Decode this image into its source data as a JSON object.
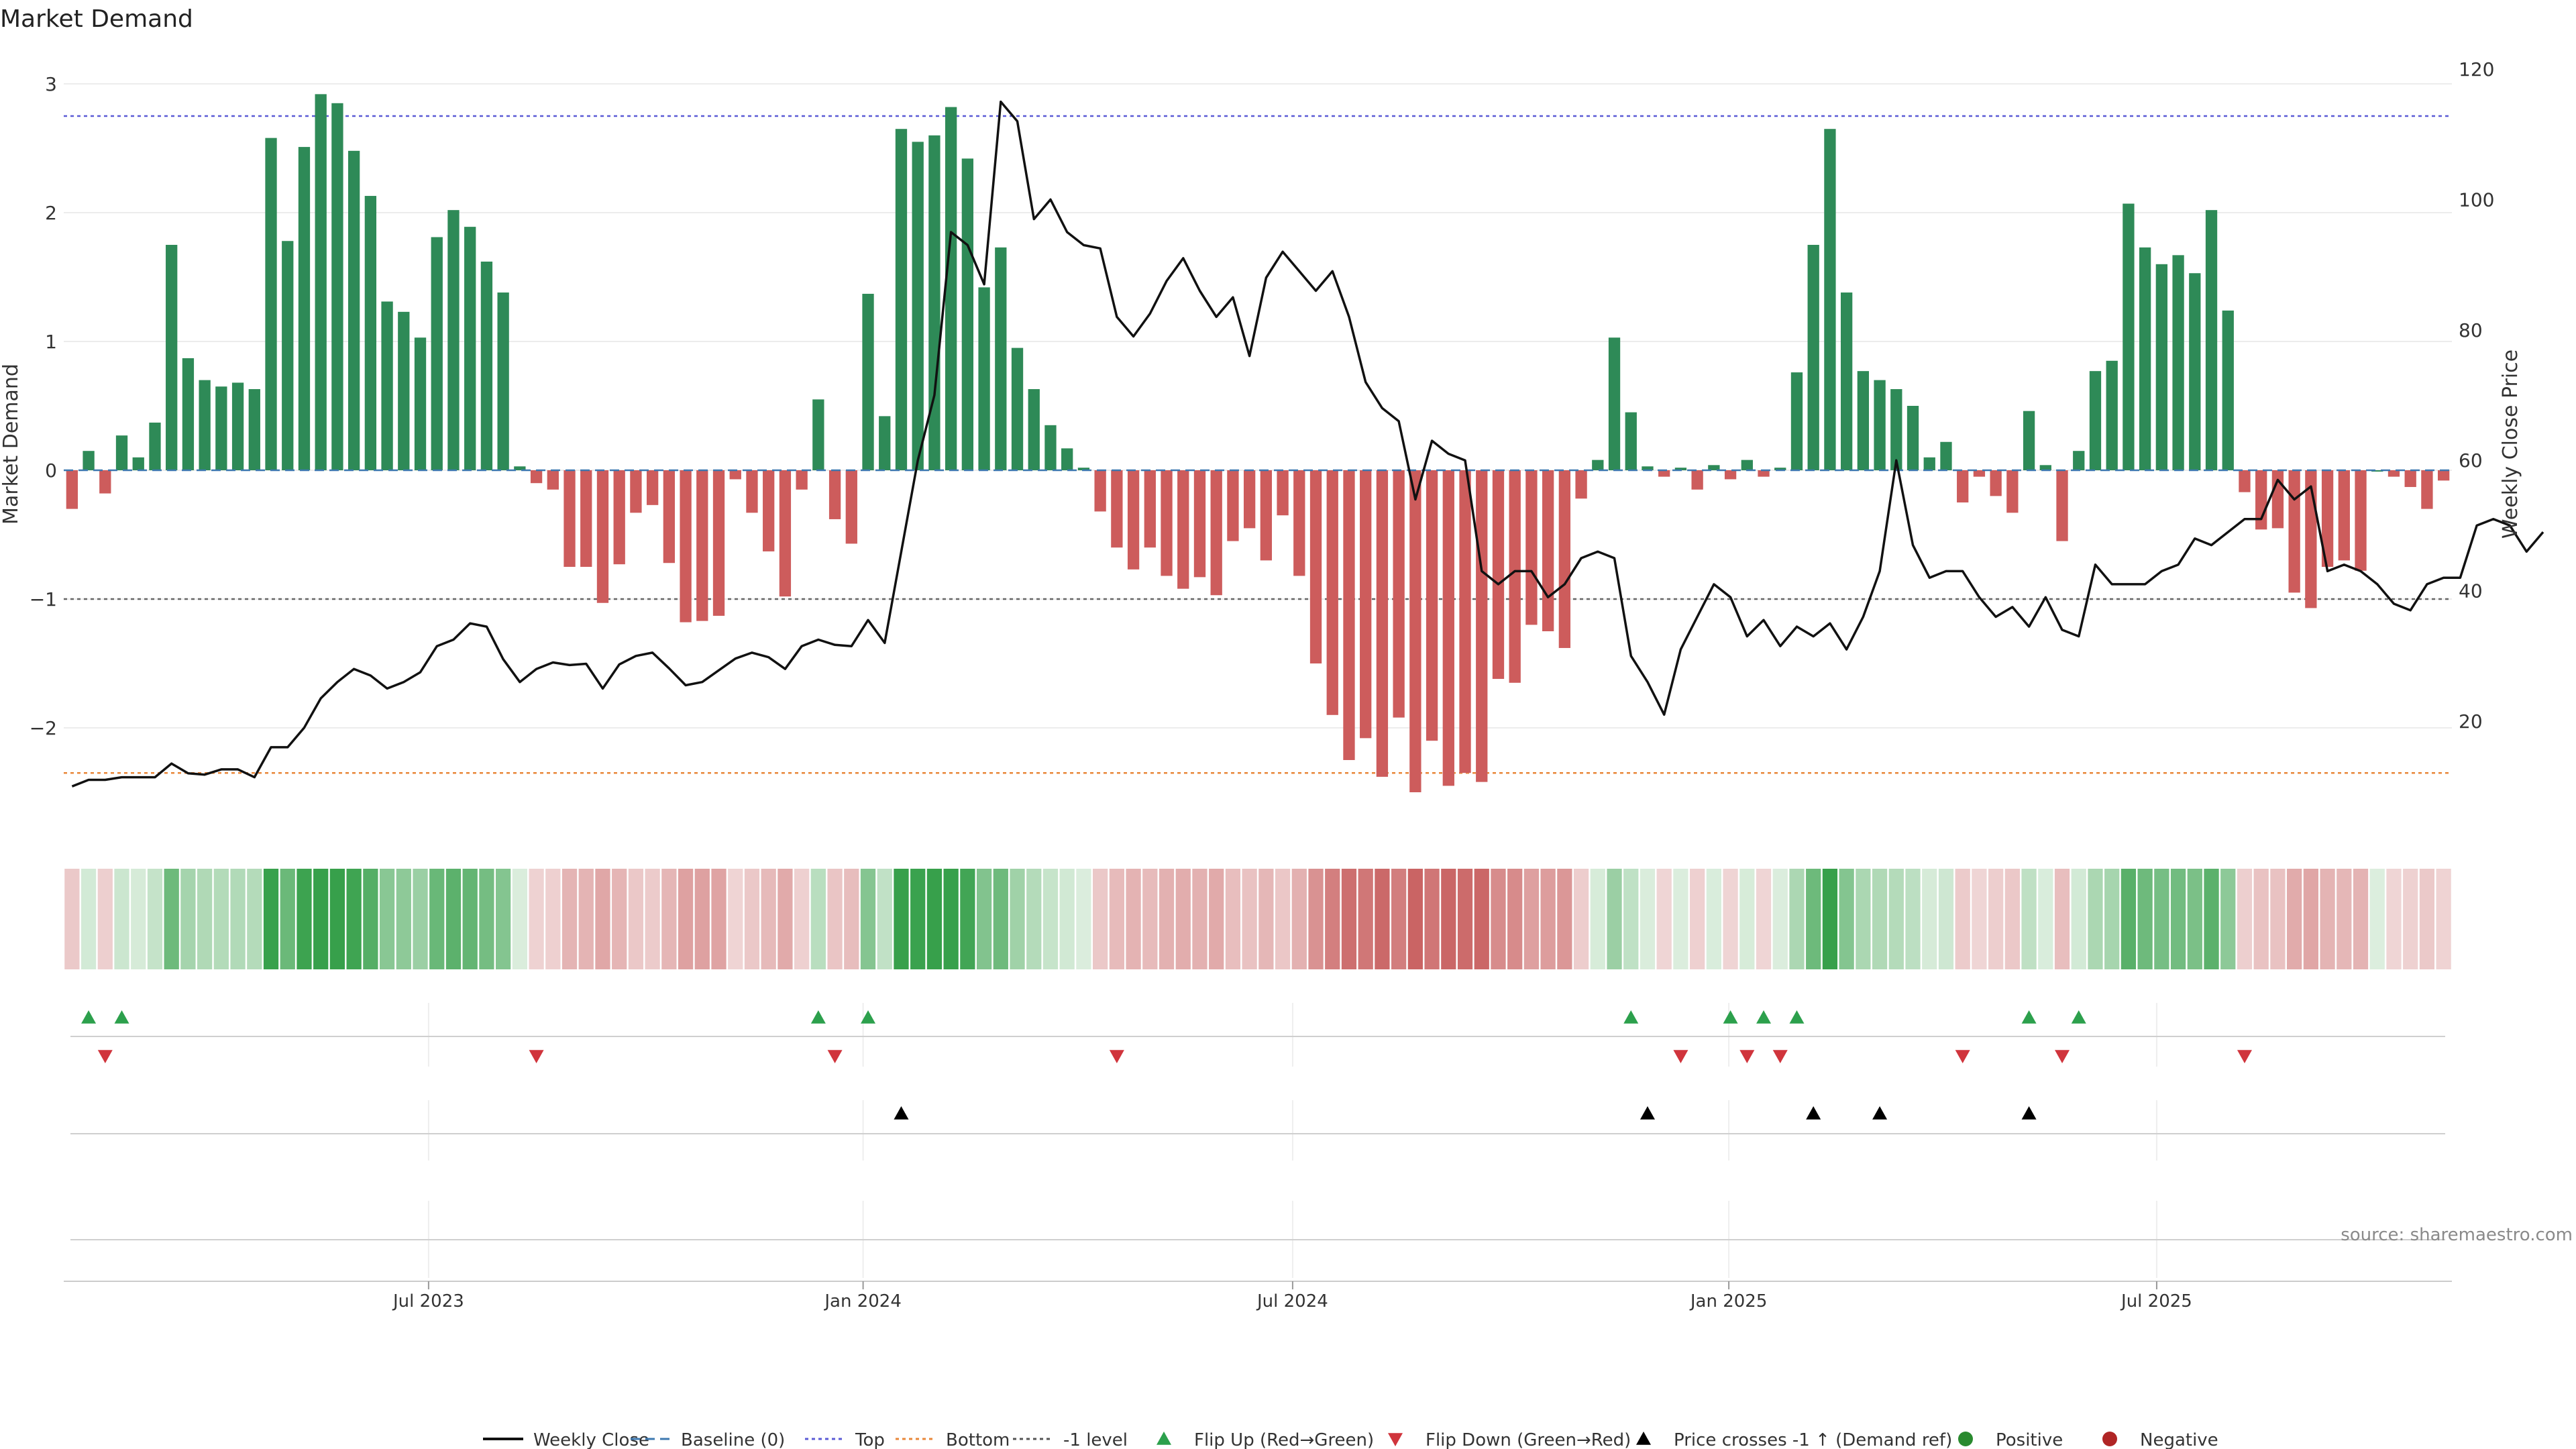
{
  "chart_data": {
    "type": "bar",
    "title": "Market Demand",
    "ylabel": "Market Demand",
    "y2label": "Weekly Close Price",
    "ylim": [
      -2.6,
      3.0
    ],
    "y2lim": [
      8,
      120
    ],
    "y_ticks": [
      3,
      2,
      1,
      0,
      -1,
      -2
    ],
    "y_tick_labels": [
      "3",
      "2",
      "1",
      "0",
      "−1",
      "−2"
    ],
    "y2_ticks": [
      120,
      100,
      80,
      60,
      40,
      20
    ],
    "y2_tick_labels": [
      "120",
      "100",
      "80",
      "60",
      "40",
      "20"
    ],
    "x_ticks": [
      {
        "label": "Jul 2023",
        "week": 21.5
      },
      {
        "label": "Jan 2024",
        "week": 47.7
      },
      {
        "label": "Jul 2024",
        "week": 73.6
      },
      {
        "label": "Jan 2025",
        "week": 99.9
      },
      {
        "label": "Jul 2025",
        "week": 125.7
      }
    ],
    "reference_lines": [
      {
        "name": "Top",
        "value": 2.75,
        "color": "#5b5bd6"
      },
      {
        "name": "Bottom",
        "value": -2.35,
        "color": "#e8873a"
      },
      {
        "name": "-1 level",
        "value": -1.0,
        "color": "#666666"
      }
    ],
    "demand": [
      -0.3,
      0.15,
      -0.18,
      0.27,
      0.1,
      0.37,
      1.75,
      0.87,
      0.7,
      0.65,
      0.68,
      0.63,
      2.58,
      1.78,
      2.51,
      2.92,
      2.85,
      2.48,
      2.13,
      1.31,
      1.23,
      1.03,
      1.81,
      2.02,
      1.89,
      1.62,
      1.38,
      0.03,
      -0.1,
      -0.15,
      -0.75,
      -0.75,
      -1.03,
      -0.73,
      -0.33,
      -0.27,
      -0.72,
      -1.18,
      -1.17,
      -1.13,
      -0.07,
      -0.33,
      -0.63,
      -0.98,
      -0.15,
      0.55,
      -0.38,
      -0.57,
      1.37,
      0.42,
      2.65,
      2.55,
      2.6,
      2.82,
      2.42,
      1.42,
      1.73,
      0.95,
      0.63,
      0.35,
      0.17,
      0.02,
      -0.32,
      -0.6,
      -0.77,
      -0.6,
      -0.82,
      -0.92,
      -0.83,
      -0.97,
      -0.55,
      -0.45,
      -0.7,
      -0.35,
      -0.82,
      -1.5,
      -1.9,
      -2.25,
      -2.08,
      -2.38,
      -1.92,
      -2.5,
      -2.1,
      -2.45,
      -2.35,
      -2.42,
      -1.62,
      -1.65,
      -1.2,
      -1.25,
      -1.38,
      -0.22,
      0.08,
      1.03,
      0.45,
      0.03,
      -0.05,
      0.02,
      -0.15,
      0.04,
      -0.07,
      0.08,
      -0.05,
      0.02,
      0.76,
      1.75,
      2.65,
      1.38,
      0.77,
      0.7,
      0.63,
      0.5,
      0.1,
      0.22,
      -0.25,
      -0.05,
      -0.2,
      -0.33,
      0.46,
      0.04,
      -0.55,
      0.15,
      0.77,
      0.85,
      2.07,
      1.73,
      1.6,
      1.67,
      1.53,
      2.02,
      1.24,
      -0.17,
      -0.46,
      -0.45,
      -0.95,
      -1.07,
      -0.75,
      -0.7,
      -0.78,
      0.0,
      -0.05,
      -0.13,
      -0.3,
      -0.08
    ],
    "close": [
      10,
      11,
      11,
      11.4,
      11.4,
      11.4,
      13.5,
      12,
      11.8,
      12.6,
      12.6,
      11.4,
      16,
      16,
      19,
      23.5,
      26,
      28,
      27,
      25,
      26,
      27.5,
      31.5,
      32.5,
      35,
      34.5,
      29.5,
      26,
      28,
      29,
      28.6,
      28.8,
      25,
      28.7,
      30,
      30.5,
      28.1,
      25.5,
      26,
      27.8,
      29.6,
      30.5,
      29.8,
      28,
      31.5,
      32.5,
      31.7,
      31.5,
      35.5,
      32,
      46,
      60,
      70,
      95,
      93,
      87,
      115,
      112,
      97,
      100,
      95,
      93,
      92.5,
      82,
      79,
      82.5,
      87.5,
      91,
      86,
      82,
      85,
      76,
      88,
      92,
      89,
      86,
      89,
      82,
      72,
      68,
      66,
      54,
      63,
      61,
      60,
      43,
      41,
      43,
      43,
      39,
      41,
      45,
      46,
      45,
      30,
      26,
      21,
      31,
      36,
      41,
      39,
      33,
      35.5,
      31.5,
      34.5,
      33,
      35,
      31,
      36,
      43,
      60,
      47,
      42,
      43,
      43,
      39,
      36,
      37.5,
      34.5,
      39,
      34,
      33,
      44,
      41,
      41,
      41,
      43,
      44,
      48,
      47,
      49,
      51,
      51,
      57,
      54,
      56,
      43,
      44,
      43,
      41,
      38,
      37,
      41,
      42,
      42,
      50,
      51,
      50,
      46,
      49
    ],
    "flip_up_weeks": [
      1,
      3,
      45,
      48,
      94,
      100,
      102,
      104,
      118,
      121
    ],
    "flip_down_weeks": [
      2,
      28,
      46,
      63,
      97,
      101,
      103,
      114,
      120,
      131
    ],
    "price_cross_weeks": [
      50,
      95,
      105,
      109,
      118
    ],
    "series": [
      {
        "name": "Weekly Close",
        "color": "#111111"
      },
      {
        "name": "Baseline (0)",
        "color": "#3d78b0"
      },
      {
        "name": "Top",
        "color": "#5b5bd6"
      },
      {
        "name": "Bottom",
        "color": "#e8873a"
      },
      {
        "name": "-1 level",
        "color": "#555555"
      },
      {
        "name": "Flip Up (Red→Green)",
        "color": "#2ca04c"
      },
      {
        "name": "Flip Down (Green→Red)",
        "color": "#d0343c"
      },
      {
        "name": "Price crosses -1 ↑ (Demand ref)",
        "color": "#000000"
      },
      {
        "name": "Positive",
        "color": "#2a8a2f"
      },
      {
        "name": "Negative",
        "color": "#b02525"
      }
    ],
    "source": "source: sharemaestro.com"
  }
}
